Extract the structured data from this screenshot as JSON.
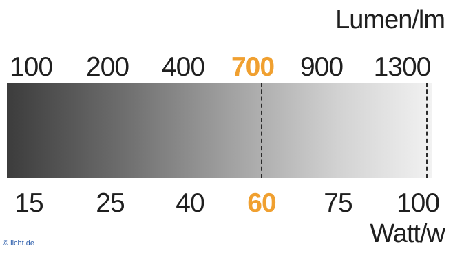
{
  "units": {
    "lumen": "Lumen/lm",
    "watt": "Watt/w"
  },
  "lumen_values": [
    "100",
    "200",
    "400",
    "700",
    "900",
    "1300"
  ],
  "watt_values": [
    "15",
    "25",
    "40",
    "60",
    "75",
    "100"
  ],
  "highlight": {
    "lumen": "700",
    "watt": "60",
    "color": "#f0a030"
  },
  "colors": {
    "gradient_start": "#3c3c3c",
    "gradient_end": "#f2f2f2",
    "text": "#1f1f1f",
    "divider": "#2a2a2a",
    "copyright": "#2a5caa"
  },
  "copyright": "© licht.de"
}
